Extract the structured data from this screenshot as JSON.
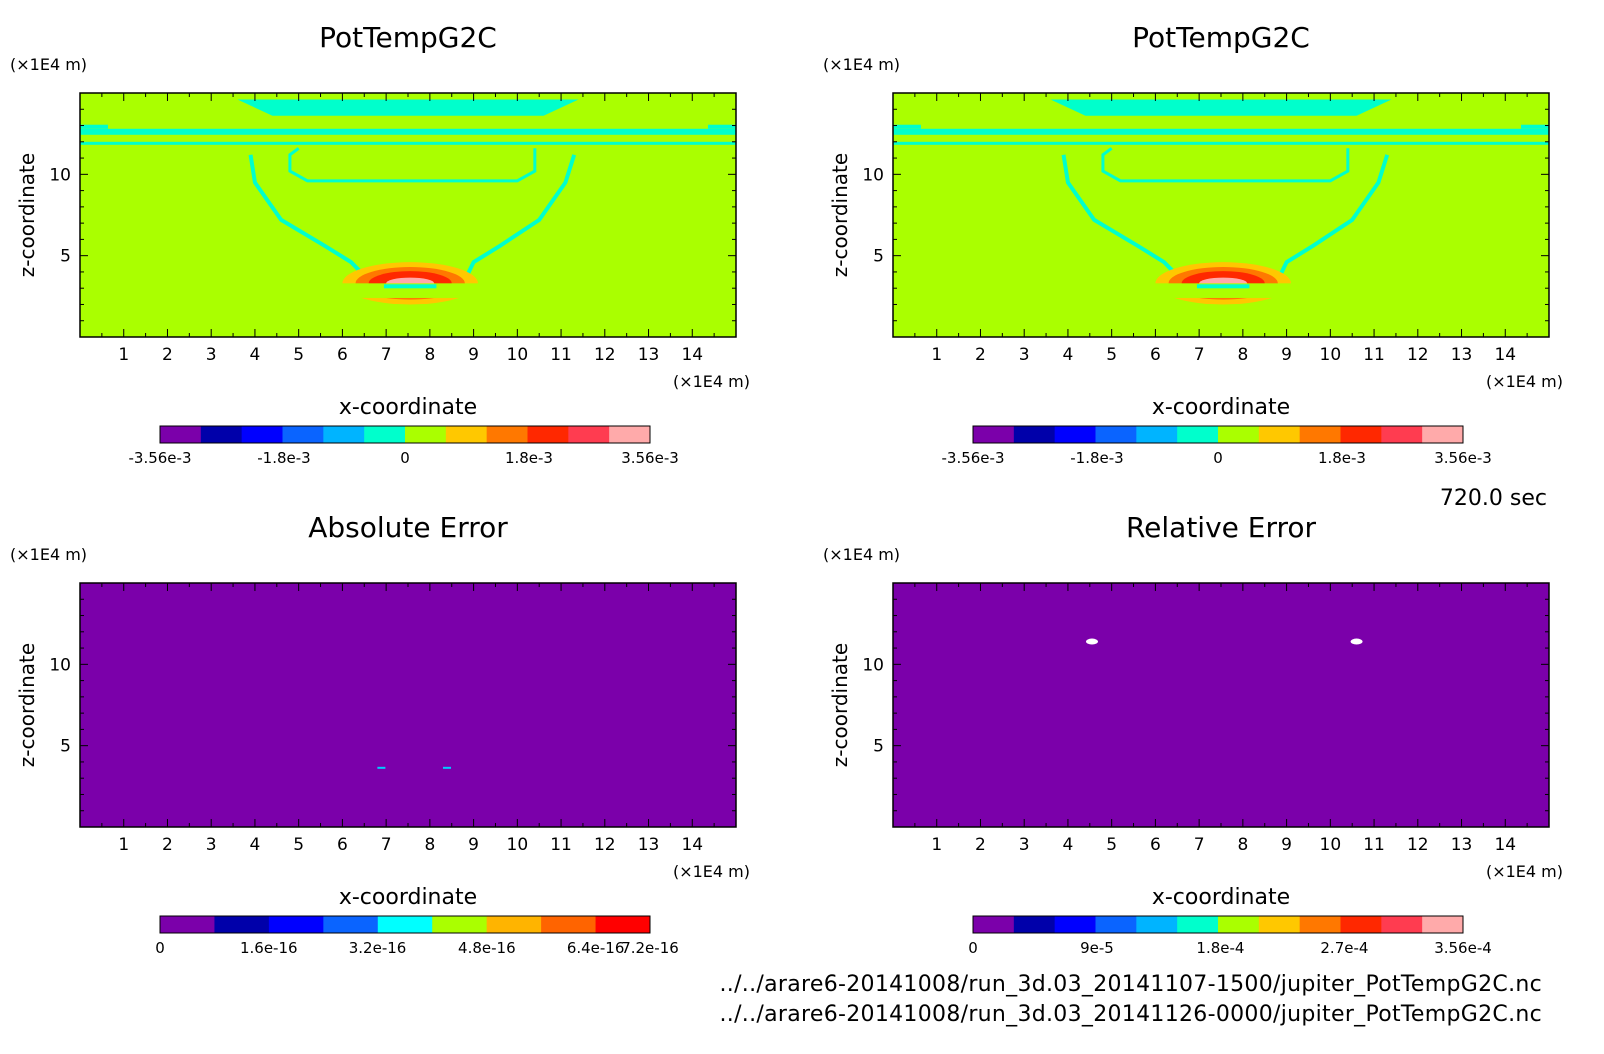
{
  "time_label": "720.0 sec",
  "file_paths": [
    "../../arare6-20141008/run_3d.03_20141107-1500/jupiter_PotTempG2C.nc",
    "../../arare6-20141008/run_3d.03_20141126-0000/jupiter_PotTempG2C.nc"
  ],
  "chart_data": [
    {
      "type": "heatmap",
      "title": "PotTempG2C",
      "xlabel": "x-coordinate",
      "ylabel": "z-coordinate",
      "x_unit": "(×1E4 m)",
      "y_unit": "(×1E4 m)",
      "x_ticks": [
        1,
        2,
        3,
        4,
        5,
        6,
        7,
        8,
        9,
        10,
        11,
        12,
        13,
        14
      ],
      "y_ticks": [
        5,
        10
      ],
      "xlim": [
        0,
        15
      ],
      "ylim": [
        0,
        15
      ],
      "field": "thermal",
      "colorbar": {
        "colors": [
          "#7b00aa",
          "#0000aa",
          "#0000ff",
          "#0a64ff",
          "#00b4ff",
          "#00ffcc",
          "#aaff00",
          "#ffc800",
          "#ff7800",
          "#ff2800",
          "#ff3c50",
          "#ffaaaa"
        ],
        "tick_labels": [
          "-3.56e-3",
          "-1.8e-3",
          "0",
          "1.8e-3",
          "3.56e-3"
        ],
        "tick_positions": [
          0,
          0.253,
          0.5,
          0.753,
          1
        ]
      }
    },
    {
      "type": "heatmap",
      "title": "PotTempG2C",
      "xlabel": "x-coordinate",
      "ylabel": "z-coordinate",
      "x_unit": "(×1E4 m)",
      "y_unit": "(×1E4 m)",
      "x_ticks": [
        1,
        2,
        3,
        4,
        5,
        6,
        7,
        8,
        9,
        10,
        11,
        12,
        13,
        14
      ],
      "y_ticks": [
        5,
        10
      ],
      "xlim": [
        0,
        15
      ],
      "ylim": [
        0,
        15
      ],
      "field": "thermal",
      "colorbar": {
        "colors": [
          "#7b00aa",
          "#0000aa",
          "#0000ff",
          "#0a64ff",
          "#00b4ff",
          "#00ffcc",
          "#aaff00",
          "#ffc800",
          "#ff7800",
          "#ff2800",
          "#ff3c50",
          "#ffaaaa"
        ],
        "tick_labels": [
          "-3.56e-3",
          "-1.8e-3",
          "0",
          "1.8e-3",
          "3.56e-3"
        ],
        "tick_positions": [
          0,
          0.253,
          0.5,
          0.753,
          1
        ]
      }
    },
    {
      "type": "heatmap",
      "title": "Absolute Error",
      "xlabel": "x-coordinate",
      "ylabel": "z-coordinate",
      "x_unit": "(×1E4 m)",
      "y_unit": "(×1E4 m)",
      "x_ticks": [
        1,
        2,
        3,
        4,
        5,
        6,
        7,
        8,
        9,
        10,
        11,
        12,
        13,
        14
      ],
      "y_ticks": [
        5,
        10
      ],
      "xlim": [
        0,
        15
      ],
      "ylim": [
        0,
        15
      ],
      "field": "abs_error",
      "colorbar": {
        "colors": [
          "#7b00aa",
          "#0000aa",
          "#0000ff",
          "#0a64ff",
          "#00ffff",
          "#aaff00",
          "#ffb400",
          "#ff6400",
          "#ff0000"
        ],
        "tick_labels": [
          "0",
          "1.6e-16",
          "3.2e-16",
          "4.8e-16",
          "6.4e-16",
          "7.2e-16"
        ],
        "tick_positions": [
          0,
          0.222,
          0.444,
          0.667,
          0.889,
          1
        ]
      }
    },
    {
      "type": "heatmap",
      "title": "Relative Error",
      "xlabel": "x-coordinate",
      "ylabel": "z-coordinate",
      "x_unit": "(×1E4 m)",
      "y_unit": "(×1E4 m)",
      "x_ticks": [
        1,
        2,
        3,
        4,
        5,
        6,
        7,
        8,
        9,
        10,
        11,
        12,
        13,
        14
      ],
      "y_ticks": [
        5,
        10
      ],
      "xlim": [
        0,
        15
      ],
      "ylim": [
        0,
        15
      ],
      "field": "rel_error",
      "colorbar": {
        "colors": [
          "#7b00aa",
          "#0000aa",
          "#0000ff",
          "#0a64ff",
          "#00b4ff",
          "#00ffcc",
          "#aaff00",
          "#ffc800",
          "#ff7800",
          "#ff2800",
          "#ff3c50",
          "#ffaaaa"
        ],
        "tick_labels": [
          "0",
          "9e-5",
          "1.8e-4",
          "2.7e-4",
          "3.56e-4"
        ],
        "tick_positions": [
          0,
          0.253,
          0.505,
          0.758,
          1
        ]
      }
    }
  ]
}
